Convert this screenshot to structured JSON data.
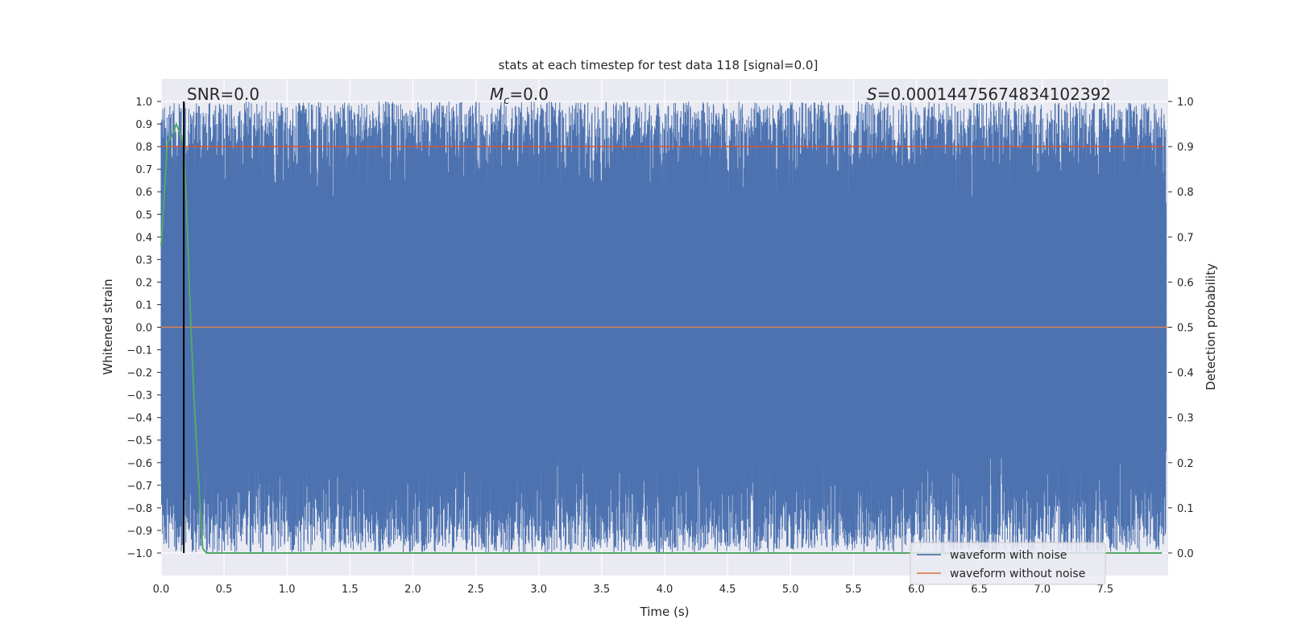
{
  "chart_data": {
    "type": "line",
    "title": "stats at each timestep for test data 118 [signal=0.0]",
    "xlabel": "Time (s)",
    "ylabel": "Whitened strain",
    "ylabel_right": "Detection probability",
    "xlim": [
      0.0,
      8.0
    ],
    "ylim": [
      -1.1,
      1.1
    ],
    "ylim_right": [
      -0.05,
      1.05
    ],
    "grid": true,
    "x_ticks": [
      "0.0",
      "0.5",
      "1.0",
      "1.5",
      "2.0",
      "2.5",
      "3.0",
      "3.5",
      "4.0",
      "4.5",
      "5.0",
      "5.5",
      "6.0",
      "6.5",
      "7.0",
      "7.5"
    ],
    "x_tick_values": [
      0.0,
      0.5,
      1.0,
      1.5,
      2.0,
      2.5,
      3.0,
      3.5,
      4.0,
      4.5,
      5.0,
      5.5,
      6.0,
      6.5,
      7.0,
      7.5
    ],
    "y_ticks": [
      "1.0",
      "0.9",
      "0.8",
      "0.7",
      "0.6",
      "0.5",
      "0.4",
      "0.3",
      "0.2",
      "0.1",
      "0.0",
      "−0.1",
      "−0.2",
      "−0.3",
      "−0.4",
      "−0.5",
      "−0.6",
      "−0.7",
      "−0.8",
      "−0.9",
      "−1.0"
    ],
    "y_tick_values": [
      1.0,
      0.9,
      0.8,
      0.7,
      0.6,
      0.5,
      0.4,
      0.3,
      0.2,
      0.1,
      0.0,
      -0.1,
      -0.2,
      -0.3,
      -0.4,
      -0.5,
      -0.6,
      -0.7,
      -0.8,
      -0.9,
      -1.0
    ],
    "y_right_ticks": [
      "1.0",
      "0.9",
      "0.8",
      "0.7",
      "0.6",
      "0.5",
      "0.4",
      "0.3",
      "0.2",
      "0.1",
      "0.0"
    ],
    "y_right_tick_values": [
      1.0,
      0.9,
      0.8,
      0.7,
      0.6,
      0.5,
      0.4,
      0.3,
      0.2,
      0.1,
      0.0
    ],
    "annotations": {
      "snr": "SNR=0.0",
      "mc_symbol": "M",
      "mc_sub": "c",
      "mc_value": "=0.0",
      "s_symbol": "S",
      "s_value": "=0.00014475674834102392"
    },
    "series": [
      {
        "name": "waveform with noise",
        "color": "#4c72b0",
        "description_envelope": {
          "upper_range": [
            0.55,
            1.0
          ],
          "lower_range": [
            -1.0,
            -0.55
          ],
          "samples": 8.0
        }
      },
      {
        "name": "waveform without noise",
        "color": "#dd8452",
        "x": [
          0.0,
          8.0
        ],
        "y": [
          0.0,
          0.0
        ]
      },
      {
        "color": "#55a868",
        "axis": "right",
        "x": [
          0.0,
          0.02,
          0.05,
          0.08,
          0.12,
          0.15,
          0.18,
          0.2,
          0.23,
          0.26,
          0.3,
          0.33,
          0.36,
          0.4,
          1.0,
          2.0,
          3.0,
          4.0,
          5.0,
          6.0,
          7.0,
          7.95
        ],
        "y": [
          0.68,
          0.77,
          0.91,
          0.92,
          0.95,
          0.93,
          0.9,
          0.78,
          0.55,
          0.35,
          0.15,
          0.01,
          0.0,
          0.0,
          0.0,
          0.0,
          0.0,
          0.0,
          0.0,
          0.0,
          0.0,
          0.0
        ]
      },
      {
        "color": "#dd5533",
        "axis": "right",
        "x": [
          0.0,
          8.0
        ],
        "y": [
          0.9,
          0.9
        ]
      },
      {
        "color": "#000000",
        "type": "vline",
        "x": 0.18
      }
    ],
    "legend": {
      "position": "lower-right",
      "entries": [
        "waveform with noise",
        "waveform without noise"
      ]
    }
  }
}
